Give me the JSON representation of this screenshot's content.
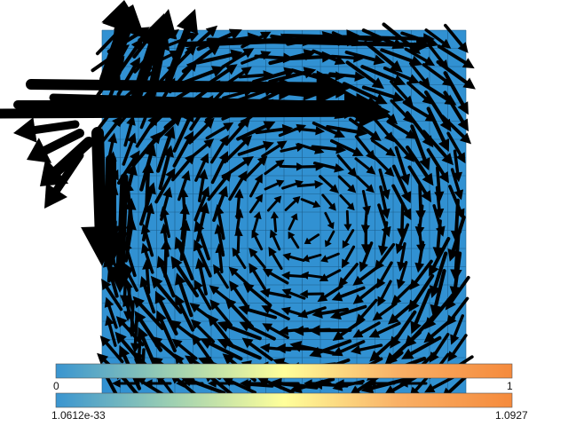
{
  "colorbars": [
    {
      "name": "scalar-colorbar",
      "min_label": "0",
      "max_label": "1",
      "stops": [
        "#3a95d0",
        "#9ccfb2",
        "#ffff9a",
        "#f9b066",
        "#f58a3c"
      ]
    },
    {
      "name": "magnitude-colorbar",
      "min_label": "1.0612e-33",
      "max_label": "1.0927",
      "stops": [
        "#3a95d0",
        "#9ccfb2",
        "#ffff9a",
        "#f9b066",
        "#f58a3c"
      ]
    }
  ],
  "domain": {
    "fill_color": "#3191d2",
    "grid_color": "#1d5f8c",
    "arrow_color": "#000000",
    "hot_spot_color": "#f08a3a",
    "grid_cells": 20
  }
}
